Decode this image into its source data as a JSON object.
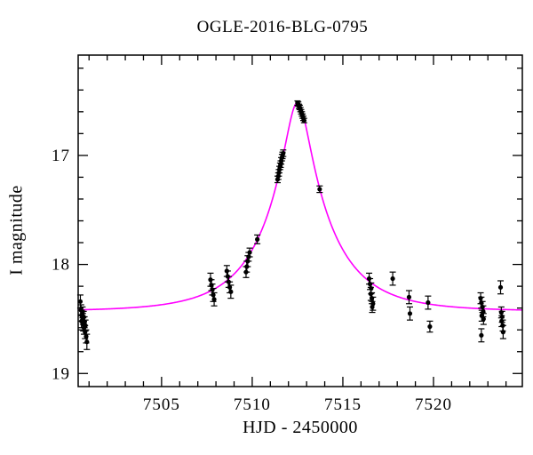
{
  "chart_data": {
    "type": "scatter",
    "title": "OGLE-2016-BLG-0795",
    "xlabel": "HJD - 2450000",
    "ylabel": "I magnitude",
    "x_range": [
      7500.4,
      7524.9
    ],
    "y_range_top_to_bottom": [
      16.08,
      19.12
    ],
    "x_major_ticks": [
      7505,
      7510,
      7515,
      7520
    ],
    "x_minor_step": 1,
    "y_major_ticks": [
      17,
      18,
      19
    ],
    "y_minor_step": 0.2,
    "grid": false,
    "legend": "none",
    "colors": {
      "model_curve": "#ff00ff",
      "data_points": "#000000",
      "frame": "#000000",
      "background": "#ffffff"
    },
    "model_curve": {
      "kind": "paczynski_microlensing",
      "baseline_I0": 18.43,
      "t0": 7512.5,
      "tE_days": 3.7,
      "u0": 0.173,
      "peak_magnitude": 16.51
    },
    "points_format": [
      "hjd_minus_2450000",
      "I_mag",
      "err_mag"
    ],
    "points": [
      [
        7500.52,
        18.34,
        0.06
      ],
      [
        7500.56,
        18.42,
        0.05
      ],
      [
        7500.6,
        18.47,
        0.05
      ],
      [
        7500.58,
        18.52,
        0.06
      ],
      [
        7500.64,
        18.44,
        0.05
      ],
      [
        7500.66,
        18.5,
        0.05
      ],
      [
        7500.68,
        18.55,
        0.06
      ],
      [
        7500.7,
        18.48,
        0.05
      ],
      [
        7500.72,
        18.58,
        0.06
      ],
      [
        7500.75,
        18.53,
        0.05
      ],
      [
        7500.78,
        18.62,
        0.06
      ],
      [
        7500.8,
        18.56,
        0.05
      ],
      [
        7500.84,
        18.66,
        0.06
      ],
      [
        7500.88,
        18.71,
        0.07
      ],
      [
        7507.7,
        18.14,
        0.06
      ],
      [
        7507.75,
        18.19,
        0.05
      ],
      [
        7507.8,
        18.23,
        0.05
      ],
      [
        7507.85,
        18.28,
        0.06
      ],
      [
        7507.9,
        18.32,
        0.06
      ],
      [
        7508.6,
        18.06,
        0.05
      ],
      [
        7508.65,
        18.11,
        0.05
      ],
      [
        7508.7,
        18.16,
        0.05
      ],
      [
        7508.76,
        18.21,
        0.05
      ],
      [
        7508.82,
        18.25,
        0.06
      ],
      [
        7509.66,
        18.07,
        0.05
      ],
      [
        7509.7,
        18.02,
        0.05
      ],
      [
        7509.75,
        17.97,
        0.05
      ],
      [
        7509.8,
        17.93,
        0.04
      ],
      [
        7509.86,
        17.89,
        0.04
      ],
      [
        7510.28,
        17.77,
        0.04
      ],
      [
        7511.4,
        17.22,
        0.03
      ],
      [
        7511.44,
        17.19,
        0.03
      ],
      [
        7511.47,
        17.16,
        0.03
      ],
      [
        7511.5,
        17.13,
        0.03
      ],
      [
        7511.54,
        17.1,
        0.03
      ],
      [
        7511.57,
        17.08,
        0.03
      ],
      [
        7511.6,
        17.05,
        0.03
      ],
      [
        7511.64,
        17.02,
        0.03
      ],
      [
        7511.67,
        17.0,
        0.03
      ],
      [
        7511.71,
        16.98,
        0.03
      ],
      [
        7512.5,
        16.52,
        0.02
      ],
      [
        7512.54,
        16.53,
        0.02
      ],
      [
        7512.58,
        16.55,
        0.02
      ],
      [
        7512.62,
        16.56,
        0.02
      ],
      [
        7512.66,
        16.58,
        0.02
      ],
      [
        7512.7,
        16.6,
        0.02
      ],
      [
        7512.74,
        16.62,
        0.02
      ],
      [
        7512.78,
        16.64,
        0.02
      ],
      [
        7512.82,
        16.66,
        0.02
      ],
      [
        7512.86,
        16.68,
        0.02
      ],
      [
        7513.72,
        17.31,
        0.03
      ],
      [
        7516.45,
        18.13,
        0.05
      ],
      [
        7516.5,
        18.18,
        0.05
      ],
      [
        7516.56,
        18.22,
        0.05
      ],
      [
        7516.54,
        18.27,
        0.06
      ],
      [
        7516.6,
        18.31,
        0.05
      ],
      [
        7516.66,
        18.36,
        0.06
      ],
      [
        7516.62,
        18.39,
        0.05
      ],
      [
        7517.75,
        18.13,
        0.06
      ],
      [
        7518.65,
        18.3,
        0.06
      ],
      [
        7518.7,
        18.45,
        0.06
      ],
      [
        7519.7,
        18.35,
        0.06
      ],
      [
        7519.8,
        18.57,
        0.05
      ],
      [
        7522.6,
        18.31,
        0.05
      ],
      [
        7522.64,
        18.35,
        0.05
      ],
      [
        7522.7,
        18.39,
        0.05
      ],
      [
        7522.74,
        18.43,
        0.05
      ],
      [
        7522.66,
        18.47,
        0.05
      ],
      [
        7522.76,
        18.5,
        0.05
      ],
      [
        7522.64,
        18.65,
        0.06
      ],
      [
        7523.7,
        18.21,
        0.06
      ],
      [
        7523.74,
        18.44,
        0.05
      ],
      [
        7523.78,
        18.48,
        0.05
      ],
      [
        7523.76,
        18.52,
        0.05
      ],
      [
        7523.82,
        18.56,
        0.05
      ],
      [
        7523.84,
        18.62,
        0.06
      ]
    ]
  }
}
